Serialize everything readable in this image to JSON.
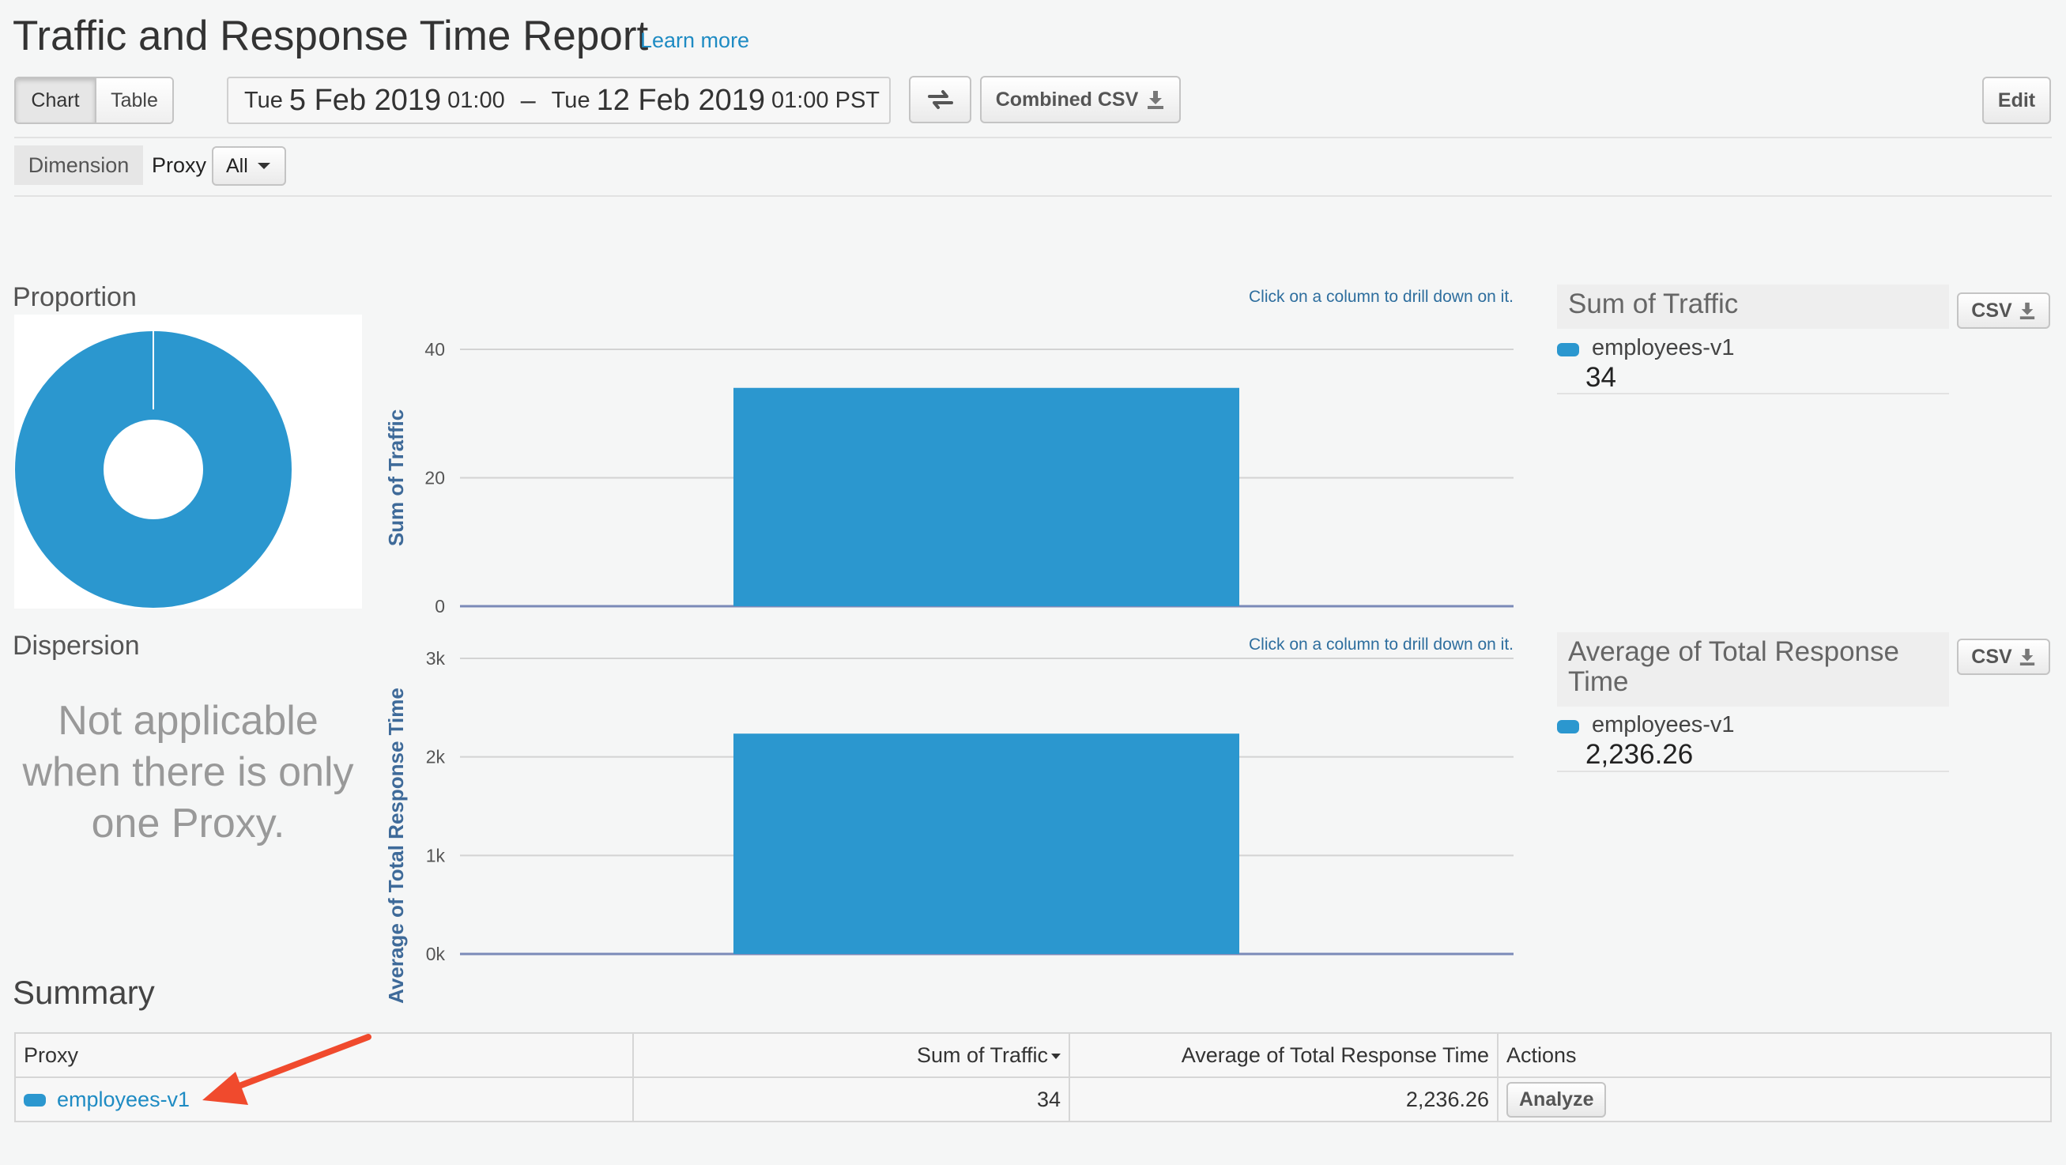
{
  "header": {
    "title": "Traffic and Response Time Report",
    "learn_more": "Learn more"
  },
  "toolbar": {
    "view_tabs": [
      "Chart",
      "Table"
    ],
    "active_tab": "Chart",
    "date_start": {
      "day": "Tue",
      "date": "5 Feb 2019",
      "time": "01:00"
    },
    "date_separator": "–",
    "date_end": {
      "day": "Tue",
      "date": "12 Feb 2019",
      "time": "01:00 PST"
    },
    "combined_csv": "Combined CSV",
    "edit": "Edit"
  },
  "filters": {
    "dimension_label": "Dimension",
    "proxy_label": "Proxy",
    "proxy_selected": "All"
  },
  "left_panel": {
    "proportion_label": "Proportion",
    "dispersion_label": "Dispersion",
    "dispersion_message": "Not applicable when there is only one Proxy."
  },
  "charts": {
    "drill_hint": "Click on a column to drill down on it.",
    "csv_label": "CSV"
  },
  "legends": {
    "traffic": {
      "title": "Sum of Traffic",
      "series": "employees-v1",
      "value": "34"
    },
    "response": {
      "title": "Average of Total Response Time",
      "series": "employees-v1",
      "value": "2,236.26"
    }
  },
  "summary": {
    "title": "Summary",
    "columns": [
      "Proxy",
      "Sum of Traffic",
      "Average of Total Response Time",
      "Actions"
    ],
    "rows": [
      {
        "proxy": "employees-v1",
        "traffic": "34",
        "response": "2,236.26",
        "action": "Analyze"
      }
    ]
  },
  "colors": {
    "series": "#2b97cf",
    "link": "#1e8bc3",
    "arrow": "#f04a2d"
  },
  "chart_data": [
    {
      "type": "pie",
      "categories": [
        "employees-v1"
      ],
      "values": [
        34
      ],
      "title": "Proportion"
    },
    {
      "type": "bar",
      "categories": [
        "employees-v1"
      ],
      "series": [
        {
          "name": "employees-v1",
          "values": [
            34
          ]
        }
      ],
      "ylabel": "Sum of Traffic",
      "yticks": [
        "0",
        "20",
        "40"
      ],
      "ylim": [
        0,
        40
      ],
      "grid": true
    },
    {
      "type": "bar",
      "categories": [
        "employees-v1"
      ],
      "series": [
        {
          "name": "employees-v1",
          "values": [
            2236.26
          ]
        }
      ],
      "ylabel": "Average of Total Response Time",
      "yticks": [
        "0k",
        "1k",
        "2k",
        "3k"
      ],
      "ylim": [
        0,
        3000
      ],
      "grid": true
    }
  ]
}
